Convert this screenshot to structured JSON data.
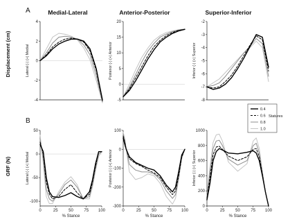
{
  "figure": {
    "panel_letters": [
      "A",
      "B"
    ],
    "column_titles": [
      "Medial-Lateral",
      "Anterior-Posterior",
      "Superior-Inferior"
    ],
    "row_labels": [
      "Displacement (cm)",
      "GRF (N)"
    ],
    "xlabel": "% Stance",
    "legend": {
      "title": "Statures",
      "entries": [
        "0.4",
        "0.6",
        "0.8",
        "1.0"
      ]
    }
  },
  "series_styles": [
    {
      "name": "0.4",
      "color": "#000000",
      "dash": "",
      "width": 1.4
    },
    {
      "name": "0.6",
      "color": "#000000",
      "dash": "3,2",
      "width": 1.0
    },
    {
      "name": "0.8",
      "color": "#8c8c8c",
      "dash": "",
      "width": 1.0
    },
    {
      "name": "1.0",
      "color": "#c4c4c4",
      "dash": "",
      "width": 1.0
    }
  ],
  "chart_data": [
    {
      "type": "line",
      "title": "Medial-Lateral",
      "ylabel": "Lateral (-) (+) Medial",
      "xlabel": "",
      "xlim": [
        0,
        100
      ],
      "ylim": [
        -4,
        4
      ],
      "yticks": [
        4,
        2,
        0,
        -2,
        -4
      ],
      "xticks": [],
      "x": [
        0,
        10,
        20,
        30,
        40,
        50,
        60,
        70,
        80,
        90,
        100
      ],
      "series": [
        {
          "name": "0.4",
          "values": [
            0.0,
            0.5,
            1.2,
            1.7,
            2.0,
            2.2,
            2.2,
            2.0,
            1.2,
            -0.8,
            -4.0
          ]
        },
        {
          "name": "0.6",
          "values": [
            0.0,
            0.6,
            1.4,
            1.9,
            2.2,
            2.3,
            2.2,
            1.9,
            1.0,
            -1.0,
            -4.1
          ]
        },
        {
          "name": "0.8",
          "values": [
            0.0,
            0.8,
            1.8,
            2.4,
            2.5,
            2.4,
            2.2,
            1.6,
            0.6,
            -1.5,
            -4.2
          ]
        },
        {
          "name": "1.0",
          "values": [
            0.0,
            1.2,
            2.4,
            2.8,
            2.7,
            2.5,
            2.1,
            1.3,
            0.1,
            -2.0,
            -4.3
          ]
        }
      ]
    },
    {
      "type": "line",
      "title": "Anterior-Posterior",
      "ylabel": "Posterior (-) (+) Anterior",
      "xlabel": "",
      "xlim": [
        0,
        100
      ],
      "ylim": [
        -5,
        20
      ],
      "yticks": [
        20,
        15,
        10,
        5,
        0,
        -5
      ],
      "xticks": [],
      "x": [
        0,
        10,
        20,
        30,
        40,
        50,
        60,
        70,
        80,
        90,
        100
      ],
      "series": [
        {
          "name": "0.4",
          "values": [
            -4.0,
            -2.0,
            1.0,
            4.5,
            8.0,
            11.0,
            13.5,
            15.0,
            16.2,
            17.0,
            17.5
          ]
        },
        {
          "name": "0.6",
          "values": [
            -4.0,
            -1.5,
            2.0,
            5.5,
            9.0,
            12.0,
            14.0,
            15.5,
            16.5,
            17.2,
            17.5
          ]
        },
        {
          "name": "0.8",
          "values": [
            -4.0,
            -1.0,
            3.0,
            7.0,
            10.5,
            13.0,
            15.0,
            16.0,
            16.8,
            17.3,
            17.5
          ]
        },
        {
          "name": "1.0",
          "values": [
            -4.0,
            0.0,
            4.5,
            8.5,
            11.5,
            14.0,
            15.5,
            16.5,
            17.0,
            17.4,
            17.6
          ]
        }
      ]
    },
    {
      "type": "line",
      "title": "Superior-Inferior",
      "ylabel": "Inferior (-) (+) Superior",
      "xlabel": "",
      "xlim": [
        0,
        100
      ],
      "ylim": [
        -8,
        -2
      ],
      "yticks": [
        -2,
        -3,
        -4,
        -5,
        -6,
        -7,
        -8
      ],
      "xticks": [],
      "x": [
        0,
        10,
        20,
        30,
        40,
        50,
        60,
        70,
        80,
        90,
        100
      ],
      "series": [
        {
          "name": "0.4",
          "values": [
            -7.0,
            -7.2,
            -7.1,
            -6.8,
            -6.3,
            -5.6,
            -4.8,
            -3.9,
            -3.0,
            -3.2,
            -5.5
          ]
        },
        {
          "name": "0.6",
          "values": [
            -7.0,
            -7.1,
            -7.0,
            -6.6,
            -6.1,
            -5.4,
            -4.6,
            -3.8,
            -3.1,
            -3.4,
            -5.8
          ]
        },
        {
          "name": "0.8",
          "values": [
            -7.0,
            -6.9,
            -6.7,
            -6.2,
            -5.6,
            -5.0,
            -4.4,
            -3.9,
            -3.3,
            -3.7,
            -6.2
          ]
        },
        {
          "name": "1.0",
          "values": [
            -7.0,
            -6.7,
            -6.4,
            -5.9,
            -5.4,
            -4.9,
            -4.4,
            -4.0,
            -3.5,
            -4.0,
            -6.6
          ]
        }
      ]
    },
    {
      "type": "line",
      "title": "",
      "ylabel": "Lateral (-) (+) Medial",
      "xlabel": "% Stance",
      "xlim": [
        0,
        100
      ],
      "ylim": [
        -110,
        50
      ],
      "yticks": [
        50,
        0,
        -50,
        -100
      ],
      "xticks": [
        0,
        25,
        50,
        75,
        100
      ],
      "x": [
        0,
        5,
        10,
        15,
        20,
        30,
        40,
        50,
        60,
        70,
        80,
        85,
        90,
        95,
        100
      ],
      "series": [
        {
          "name": "0.4",
          "values": [
            20,
            5,
            -50,
            -80,
            -90,
            -92,
            -88,
            -82,
            -90,
            -95,
            -80,
            -55,
            -20,
            5,
            5
          ]
        },
        {
          "name": "0.6",
          "values": [
            25,
            0,
            -60,
            -85,
            -95,
            -90,
            -75,
            -65,
            -82,
            -95,
            -85,
            -60,
            -25,
            5,
            5
          ]
        },
        {
          "name": "0.8",
          "values": [
            30,
            -10,
            -75,
            -95,
            -100,
            -85,
            -65,
            -55,
            -70,
            -95,
            -90,
            -65,
            -30,
            0,
            5
          ]
        },
        {
          "name": "1.0",
          "values": [
            40,
            -20,
            -90,
            -105,
            -105,
            -80,
            -60,
            -48,
            -65,
            -95,
            -95,
            -70,
            -35,
            -5,
            5
          ]
        }
      ]
    },
    {
      "type": "line",
      "title": "",
      "ylabel": "Posterior (-) (+) Anterior",
      "xlabel": "% Stance",
      "xlim": [
        0,
        100
      ],
      "ylim": [
        -300,
        100
      ],
      "yticks": [
        100,
        0,
        -100,
        -200,
        -300
      ],
      "xticks": [
        0,
        25,
        50,
        75,
        100
      ],
      "x": [
        0,
        3,
        5,
        10,
        20,
        30,
        40,
        50,
        60,
        70,
        80,
        85,
        90,
        95,
        100
      ],
      "series": [
        {
          "name": "0.4",
          "values": [
            60,
            20,
            0,
            -40,
            -70,
            -85,
            -100,
            -110,
            -140,
            -190,
            -225,
            -200,
            -120,
            -30,
            0
          ]
        },
        {
          "name": "0.6",
          "values": [
            70,
            30,
            0,
            -50,
            -75,
            -90,
            -110,
            -125,
            -150,
            -200,
            -240,
            -220,
            -140,
            -40,
            0
          ]
        },
        {
          "name": "0.8",
          "values": [
            80,
            40,
            0,
            -80,
            -110,
            -120,
            -120,
            -130,
            -160,
            -220,
            -260,
            -240,
            -150,
            -45,
            0
          ]
        },
        {
          "name": "1.0",
          "values": [
            90,
            50,
            0,
            -120,
            -160,
            -150,
            -130,
            -140,
            -180,
            -250,
            -290,
            -260,
            -160,
            -50,
            0
          ]
        }
      ]
    },
    {
      "type": "line",
      "title": "",
      "ylabel": "Inferior (-) (+) Superior",
      "xlabel": "% Stance",
      "xlim": [
        0,
        100
      ],
      "ylim": [
        0,
        1000
      ],
      "yticks": [
        1000,
        800,
        600,
        400,
        200,
        0
      ],
      "xticks": [
        0,
        25,
        50,
        75,
        100
      ],
      "x": [
        0,
        5,
        10,
        15,
        20,
        25,
        35,
        50,
        65,
        75,
        80,
        85,
        90,
        95,
        100
      ],
      "series": [
        {
          "name": "0.4",
          "values": [
            80,
            300,
            600,
            720,
            760,
            740,
            700,
            690,
            710,
            730,
            700,
            600,
            400,
            180,
            0
          ]
        },
        {
          "name": "0.6",
          "values": [
            100,
            380,
            680,
            780,
            790,
            750,
            660,
            600,
            650,
            750,
            760,
            650,
            420,
            180,
            0
          ]
        },
        {
          "name": "0.8",
          "values": [
            120,
            450,
            760,
            860,
            870,
            800,
            620,
            540,
            600,
            800,
            830,
            700,
            440,
            180,
            0
          ]
        },
        {
          "name": "1.0",
          "values": [
            140,
            520,
            840,
            940,
            950,
            860,
            580,
            460,
            560,
            860,
            900,
            760,
            460,
            180,
            0
          ]
        }
      ]
    }
  ]
}
